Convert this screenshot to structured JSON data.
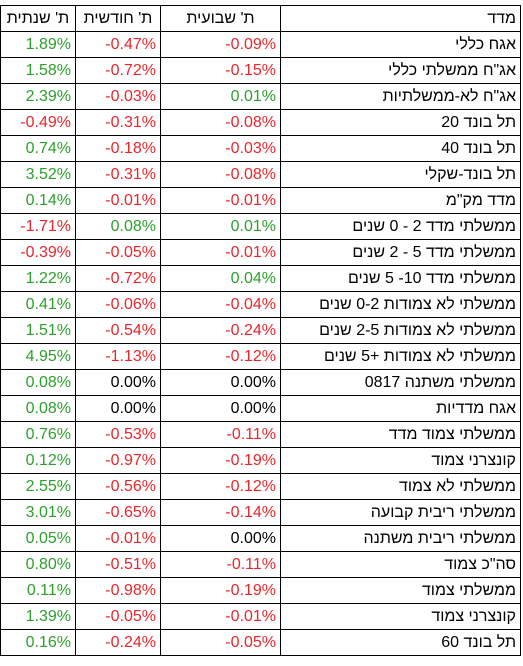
{
  "table": {
    "headers": {
      "index": "מדד",
      "weekly": "ת' שבועית",
      "monthly": "ת' חודשית",
      "yearly": "ת' שנתית"
    },
    "colors": {
      "positive": "#2ca02c",
      "negative": "#e8262b",
      "zero": "#000000"
    },
    "rows": [
      {
        "name": "אגח כללי",
        "weekly": "-0.09%",
        "monthly": "-0.47%",
        "yearly": "1.89%"
      },
      {
        "name": "אג\"ח ממשלתי כללי",
        "weekly": "-0.15%",
        "monthly": "-0.72%",
        "yearly": "1.58%"
      },
      {
        "name": "אג\"ח לא-ממשלתיות",
        "weekly": "0.01%",
        "monthly": "-0.03%",
        "yearly": "2.39%"
      },
      {
        "name": "תל בונד 20",
        "weekly": "-0.08%",
        "monthly": "-0.31%",
        "yearly": "-0.49%"
      },
      {
        "name": "תל בונד 40",
        "weekly": "-0.03%",
        "monthly": "-0.18%",
        "yearly": "0.74%"
      },
      {
        "name": "תל בונד-שקלי",
        "weekly": "-0.08%",
        "monthly": "-0.31%",
        "yearly": "3.52%"
      },
      {
        "name": "מדד מק\"מ",
        "weekly": "-0.01%",
        "monthly": "-0.01%",
        "yearly": "0.14%"
      },
      {
        "name": "ממשלתי מדד 2 - 0 שנים",
        "weekly": "0.01%",
        "monthly": "0.08%",
        "yearly": "-1.71%"
      },
      {
        "name": "ממשלתי מדד 5 - 2 שנים",
        "weekly": "-0.01%",
        "monthly": "-0.05%",
        "yearly": "-0.39%"
      },
      {
        "name": "ממשלתי מדד 10- 5 שנים",
        "weekly": "0.04%",
        "monthly": "-0.72%",
        "yearly": "1.22%"
      },
      {
        "name": "ממשלתי לא צמודות 0-2 שנים",
        "weekly": "-0.04%",
        "monthly": "-0.06%",
        "yearly": "0.41%"
      },
      {
        "name": "ממשלתי לא צמודות 2-5 שנים",
        "weekly": "-0.24%",
        "monthly": "-0.54%",
        "yearly": "1.51%"
      },
      {
        "name": "ממשלתי לא צמודות +5 שנים",
        "weekly": "-0.12%",
        "monthly": "-1.13%",
        "yearly": "4.95%"
      },
      {
        "name": "ממשלתי משתנה 0817",
        "weekly": "0.00%",
        "monthly": "0.00%",
        "yearly": "0.08%"
      },
      {
        "name": "אגח מדדיות",
        "weekly": "0.00%",
        "monthly": "0.00%",
        "yearly": "0.08%"
      },
      {
        "name": "ממשלתי צמוד מדד",
        "weekly": "-0.11%",
        "monthly": "-0.53%",
        "yearly": "0.76%"
      },
      {
        "name": "קונצרני צמוד",
        "weekly": "-0.19%",
        "monthly": "-0.97%",
        "yearly": "0.12%"
      },
      {
        "name": "ממשלתי לא צמוד",
        "weekly": "-0.12%",
        "monthly": "-0.56%",
        "yearly": "2.55%"
      },
      {
        "name": "ממשלתי ריבית קבועה",
        "weekly": "-0.14%",
        "monthly": "-0.65%",
        "yearly": "3.01%"
      },
      {
        "name": "ממשלתי ריבית משתנה",
        "weekly": "0.00%",
        "monthly": "-0.01%",
        "yearly": "0.05%"
      },
      {
        "name": "סה\"כ צמוד",
        "weekly": "-0.11%",
        "monthly": "-0.51%",
        "yearly": "0.80%"
      },
      {
        "name": "ממשלתי צמוד",
        "weekly": "-0.19%",
        "monthly": "-0.98%",
        "yearly": "0.11%"
      },
      {
        "name": "קונצרני צמוד",
        "weekly": "-0.01%",
        "monthly": "-0.05%",
        "yearly": "1.39%"
      },
      {
        "name": "תל בונד 60",
        "weekly": "-0.05%",
        "monthly": "-0.24%",
        "yearly": "0.16%"
      }
    ]
  }
}
